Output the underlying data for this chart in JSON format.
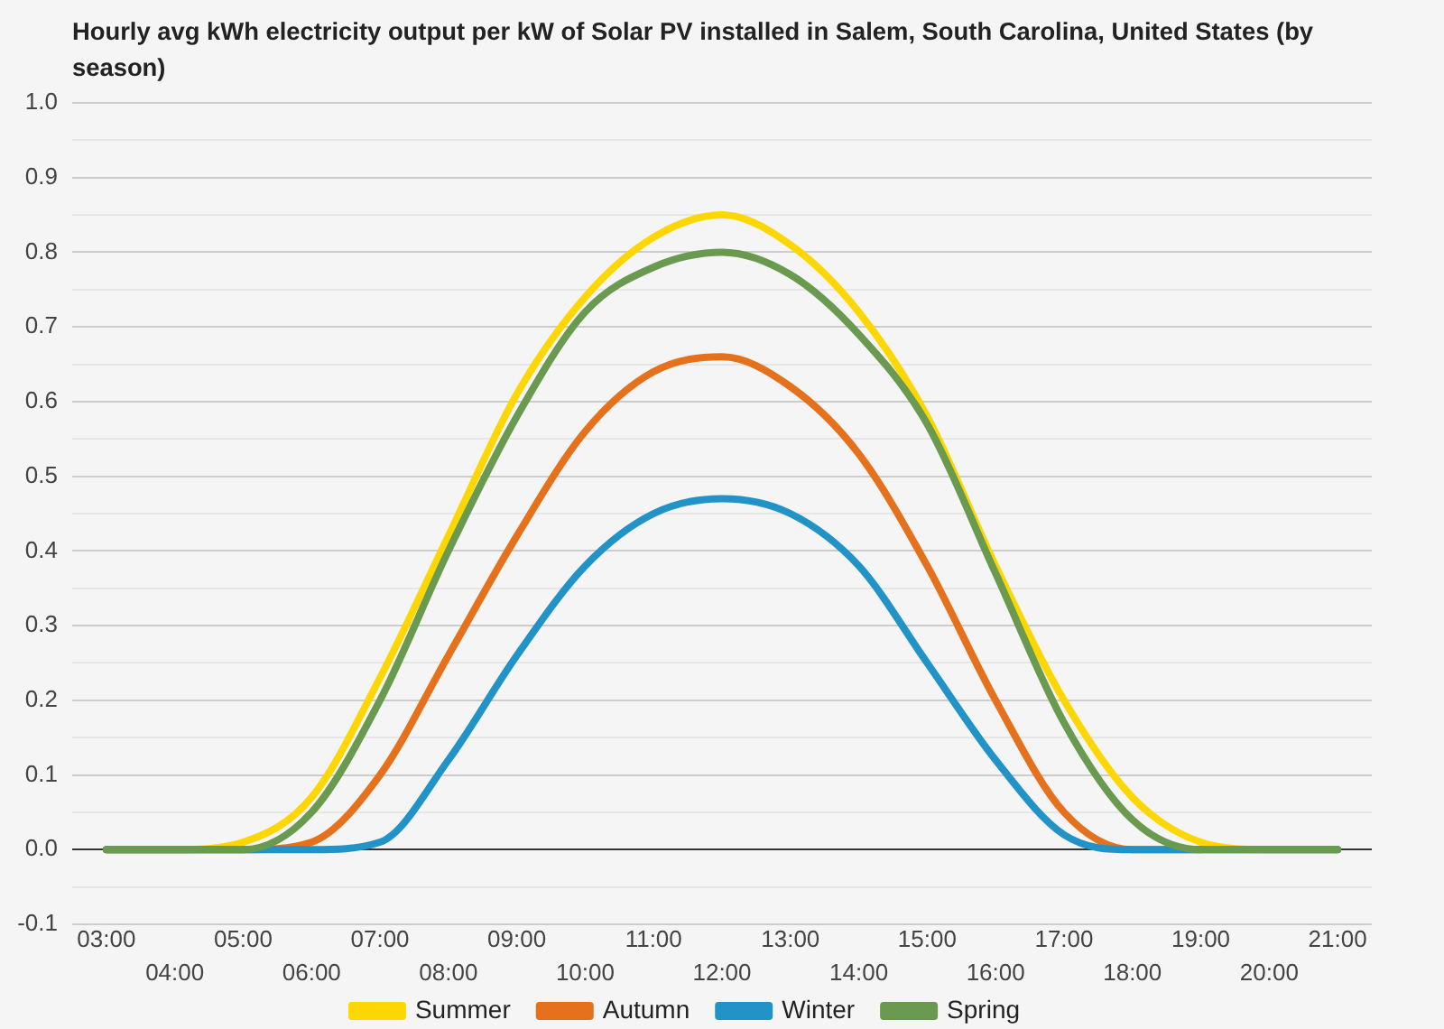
{
  "chart_data": {
    "type": "line",
    "title": "Hourly avg kWh electricity output per kW of Solar PV installed in Salem, South Carolina, United States (by season)",
    "categories": [
      "03:00",
      "04:00",
      "05:00",
      "06:00",
      "07:00",
      "08:00",
      "09:00",
      "10:00",
      "11:00",
      "12:00",
      "13:00",
      "14:00",
      "15:00",
      "16:00",
      "17:00",
      "18:00",
      "19:00",
      "20:00",
      "21:00"
    ],
    "series": [
      {
        "name": "Summer",
        "color": "#fcd704",
        "values": [
          0,
          0,
          0.01,
          0.07,
          0.23,
          0.42,
          0.61,
          0.74,
          0.82,
          0.85,
          0.81,
          0.72,
          0.58,
          0.38,
          0.2,
          0.07,
          0.01,
          0,
          0
        ]
      },
      {
        "name": "Autumn",
        "color": "#e6711d",
        "values": [
          0,
          0,
          0,
          0.01,
          0.1,
          0.26,
          0.42,
          0.56,
          0.64,
          0.66,
          0.62,
          0.53,
          0.38,
          0.2,
          0.05,
          0,
          0,
          null,
          null
        ]
      },
      {
        "name": "Winter",
        "color": "#2293c7",
        "values": [
          0,
          0,
          0,
          0,
          0.01,
          0.12,
          0.26,
          0.38,
          0.45,
          0.47,
          0.45,
          0.38,
          0.25,
          0.12,
          0.02,
          0,
          0,
          0,
          0
        ]
      },
      {
        "name": "Spring",
        "color": "#6a9a4f",
        "values": [
          0,
          0,
          0,
          0.05,
          0.2,
          0.4,
          0.58,
          0.72,
          0.78,
          0.8,
          0.77,
          0.69,
          0.57,
          0.37,
          0.17,
          0.04,
          0,
          0,
          0
        ]
      }
    ],
    "ylim": [
      -0.1,
      1
    ],
    "yticks": [
      {
        "value": -0.1,
        "label": "-0.1"
      },
      {
        "value": -0.05,
        "label": null
      },
      {
        "value": 0,
        "label": "0.0"
      },
      {
        "value": 0.05,
        "label": null
      },
      {
        "value": 0.1,
        "label": "0.1"
      },
      {
        "value": 0.15,
        "label": null
      },
      {
        "value": 0.2,
        "label": "0.2"
      },
      {
        "value": 0.25,
        "label": null
      },
      {
        "value": 0.3,
        "label": "0.3"
      },
      {
        "value": 0.35,
        "label": null
      },
      {
        "value": 0.4,
        "label": "0.4"
      },
      {
        "value": 0.45,
        "label": null
      },
      {
        "value": 0.5,
        "label": "0.5"
      },
      {
        "value": 0.55,
        "label": null
      },
      {
        "value": 0.6,
        "label": "0.6"
      },
      {
        "value": 0.65,
        "label": null
      },
      {
        "value": 0.7,
        "label": "0.7"
      },
      {
        "value": 0.75,
        "label": null
      },
      {
        "value": 0.8,
        "label": "0.8"
      },
      {
        "value": 0.85,
        "label": null
      },
      {
        "value": 0.9,
        "label": "0.9"
      },
      {
        "value": 0.95,
        "label": null
      },
      {
        "value": 1,
        "label": "1.0"
      }
    ],
    "grid": "y",
    "legend": "bottom",
    "marker": "none",
    "line_style": "solid"
  }
}
